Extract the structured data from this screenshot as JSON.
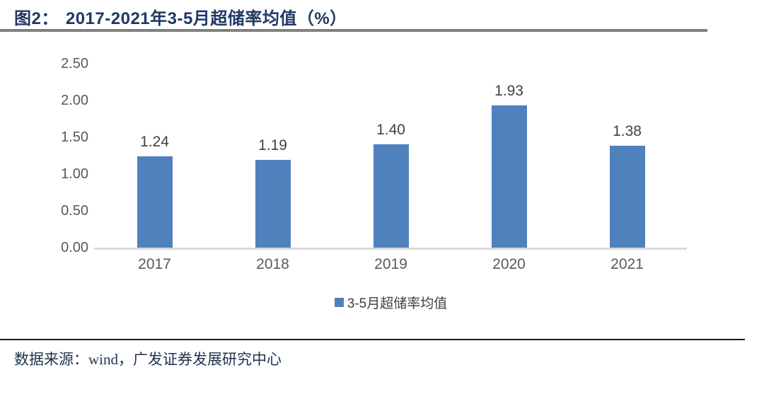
{
  "figure": {
    "label": "图2：",
    "title": "2017-2021年3-5月超储率均值（%）"
  },
  "chart_data": {
    "type": "bar",
    "title": "2017-2021年3-5月超储率均值（%）",
    "categories": [
      "2017",
      "2018",
      "2019",
      "2020",
      "2021"
    ],
    "values": [
      1.24,
      1.19,
      1.4,
      1.93,
      1.38
    ],
    "value_labels": [
      "1.24",
      "1.19",
      "1.40",
      "1.93",
      "1.38"
    ],
    "series_name": "3-5月超储率均值",
    "xlabel": "",
    "ylabel": "",
    "ylim": [
      0,
      2.5
    ],
    "yticks": [
      0,
      0.5,
      1.0,
      1.5,
      2.0,
      2.5
    ],
    "ytick_labels": [
      "0.00",
      "0.50",
      "1.00",
      "1.50",
      "2.00",
      "2.50"
    ],
    "grid": false,
    "legend_position": "bottom",
    "bar_color": "#4F81BD"
  },
  "legend": {
    "label": "3-5月超储率均值"
  },
  "source": {
    "text": "数据来源：wind，广发证券发展研究中心"
  },
  "colors": {
    "title": "#1F3864",
    "title_rule": "#808080",
    "axis_text": "#595959",
    "value_label": "#404040",
    "bar": "#4F81BD",
    "axis_line": "#D9D9D9",
    "footer_rule": "#1A1A1A",
    "source_text": "#1F3350"
  }
}
